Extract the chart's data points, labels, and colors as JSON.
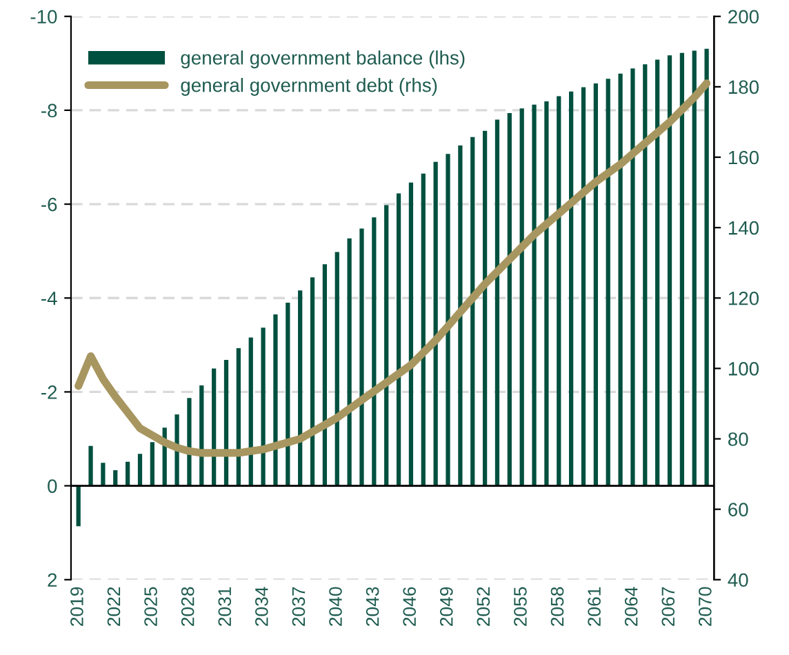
{
  "chart_data": {
    "type": "bar",
    "categories": [
      "2019",
      null,
      null,
      "2022",
      null,
      null,
      "2025",
      null,
      null,
      "2028",
      null,
      null,
      "2031",
      null,
      null,
      "2034",
      null,
      null,
      "2037",
      null,
      null,
      "2040",
      null,
      null,
      "2043",
      null,
      null,
      "2046",
      null,
      null,
      "2049",
      null,
      null,
      "2052",
      null,
      null,
      "2055",
      null,
      null,
      "2058",
      null,
      null,
      "2061",
      null,
      null,
      "2064",
      null,
      null,
      "2067",
      null,
      null,
      "2070"
    ],
    "series": [
      {
        "name": "general government balance (lhs)",
        "color": "#00503f",
        "values": [
          0.86,
          -0.85,
          -0.49,
          -0.33,
          -0.51,
          -0.68,
          -0.93,
          -1.24,
          -1.52,
          -1.87,
          -2.14,
          -2.5,
          -2.68,
          -2.93,
          -3.16,
          -3.37,
          -3.65,
          -3.9,
          -4.16,
          -4.44,
          -4.72,
          -4.98,
          -5.27,
          -5.48,
          -5.72,
          -5.98,
          -6.23,
          -6.46,
          -6.65,
          -6.9,
          -7.07,
          -7.25,
          -7.43,
          -7.56,
          -7.8,
          -7.94,
          -8.04,
          -8.12,
          -8.19,
          -8.3,
          -8.4,
          -8.49,
          -8.57,
          -8.67,
          -8.78,
          -8.89,
          -8.98,
          -9.08,
          -9.17,
          -9.22,
          -9.27,
          -9.31
        ]
      },
      {
        "name": "general government debt (rhs)",
        "type": "line",
        "axis": "y2",
        "color": "#a89660",
        "values": [
          95,
          103.5,
          97,
          92,
          87.5,
          83,
          81,
          79,
          77.5,
          76.5,
          76,
          76,
          76,
          76,
          76.5,
          77,
          78,
          79,
          80,
          82,
          84,
          86,
          88.5,
          91,
          93.5,
          96,
          98.5,
          101,
          104.5,
          108,
          112,
          116,
          120,
          124,
          127.5,
          131,
          134.5,
          138,
          141,
          144,
          147,
          150,
          153,
          155.5,
          158,
          161,
          164,
          167,
          170,
          173.5,
          177,
          181
        ]
      }
    ],
    "ylim": [
      2,
      -10
    ],
    "yticks": [
      -10,
      -8,
      -6,
      -4,
      -2,
      0,
      2
    ],
    "y2lim": [
      40,
      200
    ],
    "y2ticks": [
      40,
      60,
      80,
      100,
      120,
      140,
      160,
      180,
      200
    ],
    "grid": "y",
    "legend": "top left"
  }
}
